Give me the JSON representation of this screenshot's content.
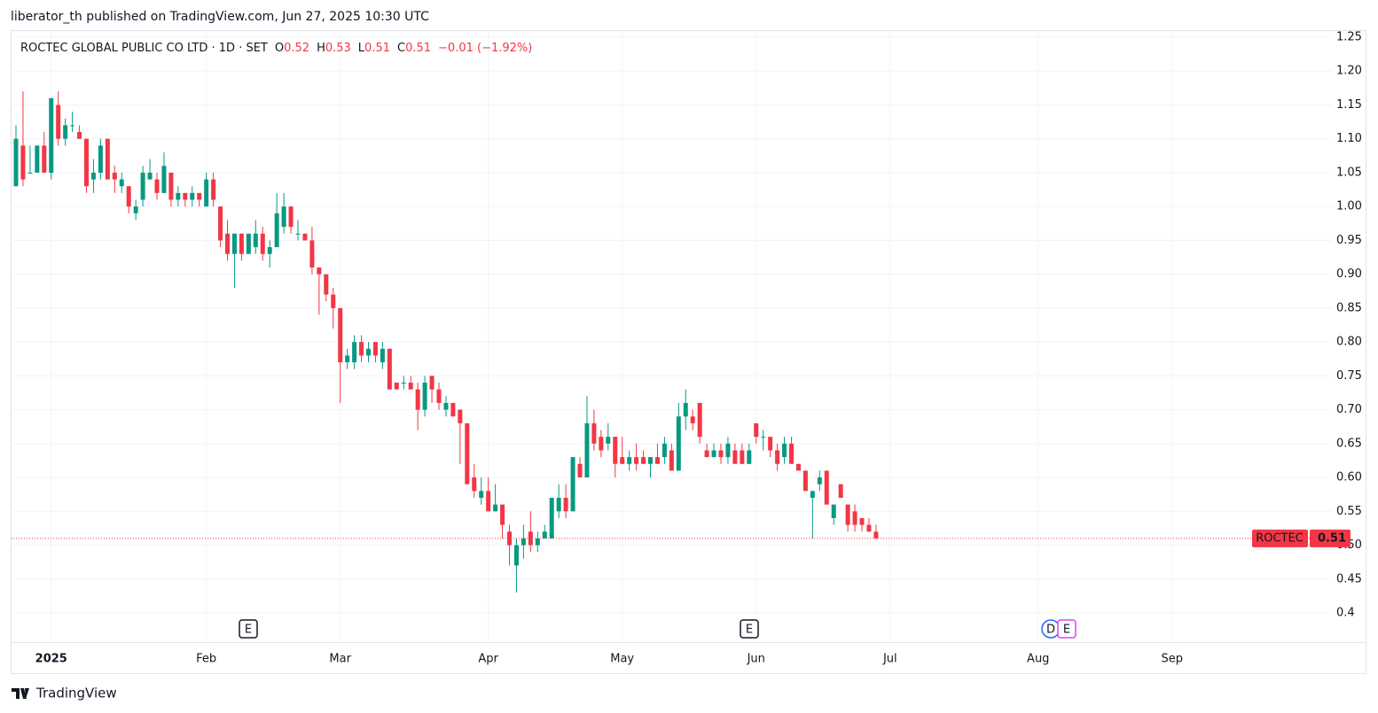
{
  "header": {
    "published": "liberator_th published on TradingView.com, Jun 27, 2025 10:30 UTC"
  },
  "legend": {
    "symbol": "ROCTEC GLOBAL PUBLIC CO LTD · 1D · SET",
    "o": "O",
    "open": 0.52,
    "h": "H",
    "high": 0.53,
    "l": "L",
    "low": 0.51,
    "c": "C",
    "close": 0.51,
    "change": "−0.01 (−1.92%)"
  },
  "last_price": {
    "ticker": "ROCTEC",
    "value": 0.51
  },
  "events": [
    "E",
    "E",
    "D",
    "E"
  ],
  "footer": {
    "brand": "TradingView"
  },
  "chart_data": {
    "type": "candlestick",
    "up_color": "#089981",
    "down_color": "#f23645",
    "grid": true,
    "ylim": [
      0.4,
      1.25
    ],
    "yticks": [
      0.4,
      0.45,
      {
        "value": 0.5,
        "label": "0.50"
      },
      0.55,
      {
        "value": 0.6,
        "label": "0.60"
      },
      0.65,
      {
        "value": 0.7,
        "label": "0.70"
      },
      0.75,
      {
        "value": 0.8,
        "label": "0.80"
      },
      0.85,
      {
        "value": 0.9,
        "label": "0.90"
      },
      0.95,
      {
        "value": 1.0,
        "label": "1.00"
      },
      1.05,
      {
        "value": 1.1,
        "label": "1.10"
      },
      1.15,
      {
        "value": 1.2,
        "label": "1.20"
      },
      1.25
    ],
    "categories": [
      null,
      null,
      null,
      null,
      null,
      "2025",
      null,
      null,
      null,
      null,
      null,
      null,
      null,
      null,
      null,
      null,
      null,
      null,
      null,
      null,
      null,
      null,
      null,
      null,
      null,
      null,
      null,
      "Feb",
      null,
      null,
      null,
      null,
      null,
      null,
      null,
      null,
      null,
      null,
      null,
      null,
      null,
      null,
      null,
      null,
      null,
      null,
      "Mar",
      null,
      null,
      null,
      null,
      null,
      null,
      null,
      null,
      null,
      null,
      null,
      null,
      null,
      null,
      null,
      null,
      null,
      null,
      null,
      null,
      "Apr",
      null,
      null,
      null,
      null,
      null,
      null,
      null,
      null,
      null,
      null,
      null,
      null,
      null,
      null,
      null,
      null,
      null,
      null,
      "May",
      null,
      null,
      null,
      null,
      null,
      null,
      null,
      null,
      null,
      null,
      null,
      null,
      null,
      null,
      null,
      null,
      null,
      null,
      "Jun",
      null,
      null,
      null,
      null,
      null,
      null,
      null,
      null,
      null,
      null,
      null,
      null,
      null,
      null,
      null,
      null,
      null,
      null,
      "Jul",
      null,
      null,
      null,
      null,
      null,
      null,
      null,
      null,
      null,
      null,
      null,
      null,
      null,
      null,
      null,
      null,
      null,
      null,
      null,
      null,
      "Aug",
      null,
      null,
      null,
      null,
      null,
      null,
      null,
      null,
      null,
      null,
      null,
      null,
      null,
      null,
      null,
      null,
      null,
      null,
      "Sep",
      null,
      null,
      null,
      null,
      null,
      null,
      null,
      null,
      null,
      null,
      null,
      null,
      null,
      null,
      null,
      null,
      null,
      null,
      null,
      null,
      null,
      null
    ],
    "open": [
      1.03,
      1.09,
      1.05,
      1.05,
      1.09,
      1.05,
      1.15,
      1.1,
      1.12,
      1.11,
      1.1,
      1.04,
      1.05,
      1.1,
      1.05,
      1.03,
      1.03,
      0.99,
      1.01,
      1.04,
      1.04,
      1.02,
      1.05,
      1.01,
      1.02,
      1.01,
      1.02,
      1.0,
      1.04,
      1.0,
      0.96,
      0.93,
      0.96,
      0.93,
      0.94,
      0.96,
      0.93,
      0.94,
      0.97,
      1.0,
      0.96,
      0.96,
      0.95,
      0.91,
      0.9,
      0.87,
      0.85,
      0.77,
      0.77,
      0.8,
      0.78,
      0.8,
      0.77,
      0.79,
      0.74,
      0.74,
      0.74,
      0.73,
      0.7,
      0.75,
      0.73,
      0.7,
      0.71,
      0.7,
      0.68,
      0.6,
      0.57,
      0.58,
      0.55,
      0.56,
      0.52,
      0.47,
      0.5,
      0.52,
      0.5,
      0.51,
      0.51,
      0.55,
      0.57,
      0.55,
      0.62,
      0.6,
      0.68,
      0.66,
      0.65,
      0.66,
      0.63,
      0.62,
      0.63,
      0.63,
      0.62,
      0.63,
      0.63,
      0.64,
      0.61,
      0.69,
      0.69,
      0.71,
      0.64,
      0.63,
      0.64,
      0.63,
      0.64,
      0.64,
      0.62,
      0.68,
      0.66,
      0.66,
      0.64,
      0.63,
      0.65,
      0.62,
      0.61,
      0.57,
      0.59,
      0.61,
      0.54,
      0.59,
      0.56,
      0.55,
      0.54,
      0.53,
      0.52,
      null,
      null,
      null,
      null,
      null,
      null,
      null,
      null,
      null,
      null,
      null,
      null,
      null,
      null,
      null,
      null,
      null,
      null,
      null,
      null,
      null,
      null,
      null,
      null,
      null,
      null,
      null,
      null,
      null,
      null,
      null,
      null,
      null,
      null,
      null,
      null,
      null,
      null,
      null,
      null,
      null,
      null,
      null,
      null,
      null,
      null,
      null,
      null,
      null,
      null,
      null,
      null,
      null,
      null,
      null,
      null,
      null,
      null,
      null,
      null,
      null,
      null,
      null,
      null
    ],
    "high": [
      1.12,
      1.17,
      1.09,
      1.09,
      1.11,
      1.16,
      1.17,
      1.13,
      1.14,
      1.12,
      1.1,
      1.07,
      1.1,
      1.1,
      1.06,
      1.05,
      1.03,
      1.01,
      1.06,
      1.07,
      1.05,
      1.08,
      1.05,
      1.03,
      1.02,
      1.03,
      1.02,
      1.05,
      1.05,
      1.0,
      0.98,
      0.96,
      0.96,
      0.96,
      0.98,
      0.97,
      0.95,
      1.02,
      1.02,
      1.0,
      0.98,
      0.96,
      0.97,
      0.91,
      0.9,
      0.88,
      0.85,
      0.79,
      0.81,
      0.81,
      0.8,
      0.8,
      0.8,
      0.79,
      0.74,
      0.75,
      0.75,
      0.74,
      0.75,
      0.75,
      0.74,
      0.72,
      0.71,
      0.7,
      0.68,
      0.62,
      0.6,
      0.6,
      0.59,
      0.56,
      0.53,
      0.51,
      0.53,
      0.55,
      0.52,
      0.53,
      0.57,
      0.59,
      0.59,
      0.63,
      0.63,
      0.72,
      0.7,
      0.67,
      0.68,
      0.66,
      0.66,
      0.64,
      0.65,
      0.64,
      0.63,
      0.65,
      0.66,
      0.65,
      0.71,
      0.73,
      0.7,
      0.71,
      0.65,
      0.65,
      0.65,
      0.66,
      0.65,
      0.65,
      0.65,
      0.68,
      0.67,
      0.66,
      0.65,
      0.66,
      0.66,
      0.62,
      0.61,
      0.58,
      0.61,
      0.61,
      0.56,
      0.59,
      0.56,
      0.56,
      0.54,
      0.54,
      0.53,
      null,
      null,
      null,
      null,
      null,
      null,
      null,
      null,
      null,
      null,
      null,
      null,
      null,
      null,
      null,
      null,
      null,
      null,
      null,
      null,
      null,
      null,
      null,
      null,
      null,
      null,
      null,
      null,
      null,
      null,
      null,
      null,
      null,
      null,
      null,
      null,
      null,
      null,
      null,
      null,
      null,
      null,
      null,
      null,
      null,
      null,
      null,
      null,
      null,
      null,
      null,
      null,
      null,
      null,
      null,
      null,
      null,
      null,
      null,
      null,
      null,
      null,
      null,
      null
    ],
    "low": [
      1.03,
      1.03,
      1.05,
      1.05,
      1.05,
      1.04,
      1.09,
      1.09,
      1.11,
      1.1,
      1.02,
      1.02,
      1.04,
      1.04,
      1.02,
      1.02,
      0.99,
      0.98,
      1.0,
      1.04,
      1.01,
      1.02,
      1.0,
      1.0,
      1.0,
      1.0,
      1.0,
      1.0,
      1.0,
      0.94,
      0.92,
      0.88,
      0.92,
      0.93,
      0.93,
      0.92,
      0.91,
      0.94,
      0.96,
      0.96,
      0.95,
      0.95,
      0.9,
      0.84,
      0.86,
      0.82,
      0.71,
      0.76,
      0.76,
      0.77,
      0.77,
      0.77,
      0.76,
      0.73,
      0.73,
      0.73,
      0.73,
      0.67,
      0.69,
      0.71,
      0.7,
      0.69,
      0.69,
      0.62,
      0.59,
      0.57,
      0.56,
      0.55,
      0.55,
      0.51,
      0.47,
      0.43,
      0.48,
      0.49,
      0.49,
      0.51,
      0.51,
      0.54,
      0.54,
      0.55,
      0.6,
      0.6,
      0.64,
      0.63,
      0.64,
      0.6,
      0.62,
      0.61,
      0.61,
      0.62,
      0.6,
      0.62,
      0.62,
      0.61,
      0.61,
      0.67,
      0.67,
      0.65,
      0.63,
      0.63,
      0.62,
      0.62,
      0.62,
      0.62,
      0.62,
      0.65,
      0.64,
      0.63,
      0.61,
      0.62,
      0.62,
      0.61,
      0.58,
      0.51,
      0.58,
      0.56,
      0.53,
      0.57,
      0.52,
      0.52,
      0.52,
      0.52,
      0.51,
      null,
      null,
      null,
      null,
      null,
      null,
      null,
      null,
      null,
      null,
      null,
      null,
      null,
      null,
      null,
      null,
      null,
      null,
      null,
      null,
      null,
      null,
      null,
      null,
      null,
      null,
      null,
      null,
      null,
      null,
      null,
      null,
      null,
      null,
      null,
      null,
      null,
      null,
      null,
      null,
      null,
      null,
      null,
      null,
      null,
      null,
      null,
      null,
      null,
      null,
      null,
      null,
      null,
      null,
      null,
      null,
      null,
      null,
      null,
      null,
      null,
      null,
      null,
      null
    ],
    "close": [
      1.1,
      1.04,
      1.05,
      1.09,
      1.05,
      1.16,
      1.1,
      1.12,
      1.12,
      1.1,
      1.03,
      1.05,
      1.09,
      1.04,
      1.04,
      1.04,
      1.0,
      1.0,
      1.05,
      1.05,
      1.02,
      1.06,
      1.01,
      1.02,
      1.01,
      1.02,
      1.01,
      1.04,
      1.01,
      0.95,
      0.93,
      0.96,
      0.93,
      0.96,
      0.96,
      0.93,
      0.94,
      0.99,
      1.0,
      0.97,
      0.96,
      0.95,
      0.91,
      0.9,
      0.87,
      0.85,
      0.77,
      0.78,
      0.8,
      0.78,
      0.79,
      0.78,
      0.79,
      0.73,
      0.73,
      0.74,
      0.73,
      0.7,
      0.74,
      0.73,
      0.71,
      0.71,
      0.69,
      0.68,
      0.59,
      0.58,
      0.58,
      0.55,
      0.56,
      0.53,
      0.5,
      0.5,
      0.51,
      0.5,
      0.51,
      0.52,
      0.57,
      0.57,
      0.55,
      0.63,
      0.6,
      0.68,
      0.65,
      0.64,
      0.66,
      0.62,
      0.62,
      0.63,
      0.62,
      0.62,
      0.63,
      0.62,
      0.65,
      0.61,
      0.69,
      0.71,
      0.68,
      0.66,
      0.63,
      0.64,
      0.63,
      0.65,
      0.62,
      0.62,
      0.64,
      0.66,
      0.66,
      0.64,
      0.62,
      0.65,
      0.62,
      0.61,
      0.58,
      0.58,
      0.6,
      0.56,
      0.56,
      0.57,
      0.53,
      0.53,
      0.53,
      0.52,
      0.51,
      null,
      null,
      null,
      null,
      null,
      null,
      null,
      null,
      null,
      null,
      null,
      null,
      null,
      null,
      null,
      null,
      null,
      null,
      null,
      null,
      null,
      null,
      null,
      null,
      null,
      null,
      null,
      null,
      null,
      null,
      null,
      null,
      null,
      null,
      null,
      null,
      null,
      null,
      null,
      null,
      null,
      null,
      null,
      null,
      null,
      null,
      null,
      null,
      null,
      null,
      null,
      null,
      null,
      null,
      null,
      null,
      null,
      null,
      null,
      null,
      null,
      null,
      null,
      null
    ]
  }
}
